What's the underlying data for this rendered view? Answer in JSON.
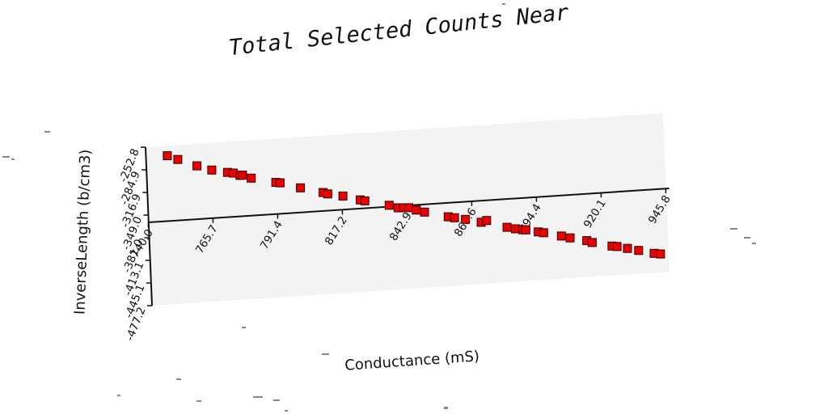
{
  "chart_data": {
    "type": "scatter",
    "title": "Total Selected Counts Near",
    "xlabel": "Conductance (mS)",
    "ylabel": "InverseLength (b/cm3)",
    "xlim": [
      740.0,
      945.8
    ],
    "ylim": [
      -477.2,
      -252.8
    ],
    "x_ticks": [
      "740.0",
      "765.7",
      "791.4",
      "817.2",
      "842.9",
      "868.6",
      "894.4",
      "920.1",
      "945.8"
    ],
    "y_ticks": [
      "-252.8",
      "-284.9",
      "-316.9",
      "-349.0",
      "-381.0",
      "-413.1",
      "-445.1",
      "-477.2"
    ],
    "grid": false,
    "marker_color": "#ee0000",
    "marker_edge": "#330000",
    "panel_color": "#f3f3f3",
    "series": [
      {
        "points": [
          {
            "x": 748.5,
            "y": -266.9
          },
          {
            "x": 752.6,
            "y": -273.1
          },
          {
            "x": 760.1,
            "y": -283.9
          },
          {
            "x": 765.9,
            "y": -291.3
          },
          {
            "x": 772.1,
            "y": -296.0
          },
          {
            "x": 774.4,
            "y": -297.5
          },
          {
            "x": 777.0,
            "y": -301.4
          },
          {
            "x": 778.0,
            "y": -301.3
          },
          {
            "x": 781.4,
            "y": -306.3
          },
          {
            "x": 791.1,
            "y": -314.6
          },
          {
            "x": 792.8,
            "y": -315.6
          },
          {
            "x": 800.8,
            "y": -324.6
          },
          {
            "x": 809.7,
            "y": -333.3
          },
          {
            "x": 811.5,
            "y": -335.7
          },
          {
            "x": 817.5,
            "y": -340.1
          },
          {
            "x": 824.3,
            "y": -347.1
          },
          {
            "x": 826.1,
            "y": -348.9
          },
          {
            "x": 835.7,
            "y": -357.5
          },
          {
            "x": 839.2,
            "y": -361.9
          },
          {
            "x": 841.3,
            "y": -362.3
          },
          {
            "x": 843.4,
            "y": -362.7
          },
          {
            "x": 846.4,
            "y": -366.7
          },
          {
            "x": 849.6,
            "y": -370.3
          },
          {
            "x": 858.9,
            "y": -379.2
          },
          {
            "x": 861.4,
            "y": -381.1
          },
          {
            "x": 865.7,
            "y": -384.4
          },
          {
            "x": 871.9,
            "y": -390.0
          },
          {
            "x": 874.1,
            "y": -388.0
          },
          {
            "x": 882.1,
            "y": -399.5
          },
          {
            "x": 885.4,
            "y": -402.4
          },
          {
            "x": 888.3,
            "y": -404.4
          },
          {
            "x": 889.5,
            "y": -404.8
          },
          {
            "x": 894.4,
            "y": -408.9
          },
          {
            "x": 896.5,
            "y": -410.5
          },
          {
            "x": 903.5,
            "y": -416.8
          },
          {
            "x": 906.9,
            "y": -420.2
          },
          {
            "x": 913.5,
            "y": -425.7
          },
          {
            "x": 915.6,
            "y": -428.8
          },
          {
            "x": 923.4,
            "y": -435.7
          },
          {
            "x": 925.4,
            "y": -436.8
          },
          {
            "x": 929.5,
            "y": -440.4
          },
          {
            "x": 933.9,
            "y": -444.3
          },
          {
            "x": 940.0,
            "y": -449.8
          },
          {
            "x": 942.5,
            "y": -451.3
          }
        ]
      }
    ]
  }
}
